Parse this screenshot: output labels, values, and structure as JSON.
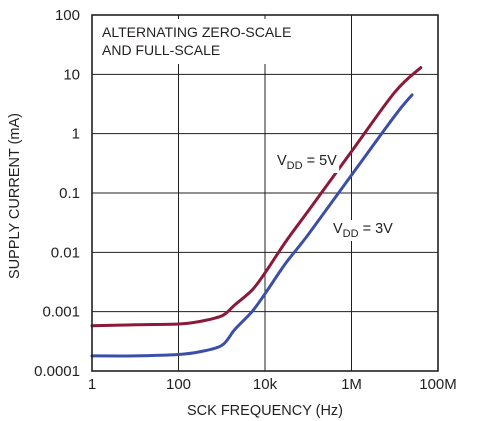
{
  "chart_data": {
    "type": "line",
    "title": "",
    "annotation": [
      "ALTERNATING ZERO-SCALE",
      "AND FULL-SCALE"
    ],
    "xlabel": "SCK FREQUENCY (Hz)",
    "ylabel": "SUPPLY CURRENT (mA)",
    "x_scale": "log",
    "y_scale": "log",
    "xlim": [
      1,
      100000000
    ],
    "ylim": [
      0.0001,
      100
    ],
    "grid": true,
    "x_ticks": [
      {
        "value": 1,
        "label": "1"
      },
      {
        "value": 100,
        "label": "100"
      },
      {
        "value": 10000,
        "label": "10k"
      },
      {
        "value": 1000000,
        "label": "1M"
      },
      {
        "value": 100000000,
        "label": "100M"
      }
    ],
    "y_ticks": [
      {
        "value": 100,
        "label": "100"
      },
      {
        "value": 10,
        "label": "10"
      },
      {
        "value": 1,
        "label": "1"
      },
      {
        "value": 0.1,
        "label": "0.1"
      },
      {
        "value": 0.01,
        "label": "0.01"
      },
      {
        "value": 0.001,
        "label": "0.001"
      },
      {
        "value": 0.0001,
        "label": "0.0001"
      }
    ],
    "series": [
      {
        "name": "5V",
        "label": {
          "prefix": "V",
          "sub": "DD",
          "suffix": " = 5V"
        },
        "color": "#8b1a3a",
        "points": [
          [
            1,
            0.00058
          ],
          [
            10,
            0.0006
          ],
          [
            100,
            0.00062
          ],
          [
            300,
            0.00068
          ],
          [
            1000,
            0.00085
          ],
          [
            2000,
            0.0013
          ],
          [
            5000,
            0.0023
          ],
          [
            10000,
            0.0045
          ],
          [
            30000,
            0.015
          ],
          [
            100000,
            0.05
          ],
          [
            1000000,
            0.5
          ],
          [
            10000000,
            5
          ],
          [
            40000000,
            13
          ]
        ]
      },
      {
        "name": "3V",
        "label": {
          "prefix": "V",
          "sub": "DD",
          "suffix": " = 3V"
        },
        "color": "#3b4ea8",
        "points": [
          [
            1,
            0.00018
          ],
          [
            10,
            0.00018
          ],
          [
            100,
            0.00019
          ],
          [
            300,
            0.00021
          ],
          [
            1000,
            0.00027
          ],
          [
            2000,
            0.0005
          ],
          [
            5000,
            0.001
          ],
          [
            10000,
            0.002
          ],
          [
            30000,
            0.0065
          ],
          [
            100000,
            0.02
          ],
          [
            1000000,
            0.2
          ],
          [
            10000000,
            2
          ],
          [
            25000000,
            4.5
          ]
        ]
      }
    ]
  }
}
